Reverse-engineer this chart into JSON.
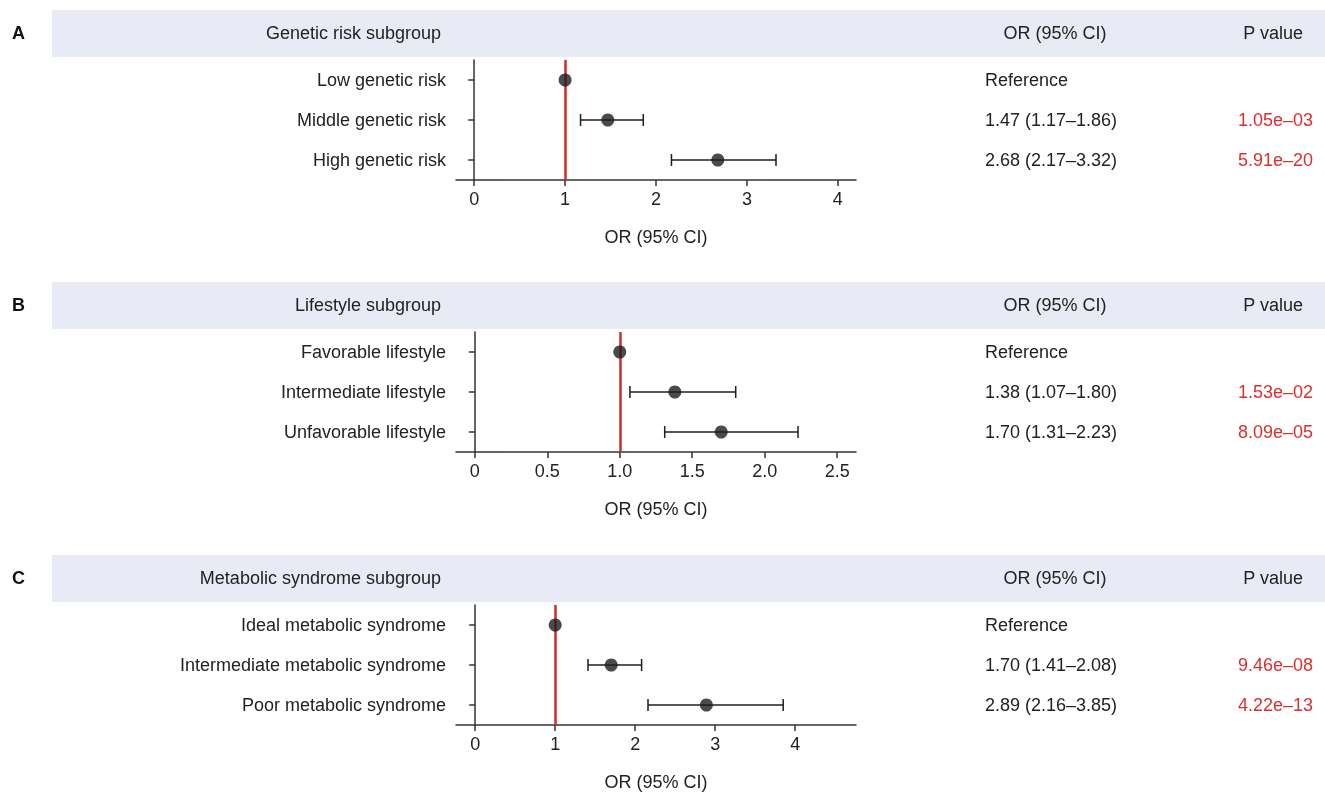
{
  "chart_data": [
    {
      "type": "scatter",
      "orientation": "horizontal",
      "title": "Genetic risk subgroup",
      "xlabel": "OR (95% CI)",
      "marker": "circle",
      "categories": [
        "Low genetic risk",
        "Middle genetic risk",
        "High genetic risk"
      ],
      "series": [
        {
          "color": "#1e1e1e",
          "values": [
            1,
            1.47,
            2.68
          ],
          "errors": [
            null,
            [
              1.17,
              1.86
            ],
            [
              2.17,
              3.32
            ]
          ]
        }
      ],
      "xlim": [
        -0.2,
        4.2
      ],
      "xticks": [
        0,
        1,
        2,
        3,
        4
      ],
      "ref_lines": [
        {
          "axis": "x",
          "value": 1,
          "color": "#d42a2a"
        }
      ],
      "annotations": [
        "OR (95% CI)",
        "P value",
        "Reference",
        "1.47 (1.17–1.86)",
        "2.68 (2.17–3.32)",
        "1.05e–03",
        "5.91e–20",
        "A"
      ]
    },
    {
      "type": "scatter",
      "orientation": "horizontal",
      "title": "Lifestyle subgroup",
      "xlabel": "OR (95% CI)",
      "marker": "circle",
      "categories": [
        "Favorable lifestyle",
        "Intermediate lifestyle",
        "Unfavorable lifestyle"
      ],
      "series": [
        {
          "color": "#1e1e1e",
          "values": [
            1,
            1.38,
            1.7
          ],
          "errors": [
            null,
            [
              1.07,
              1.8
            ],
            [
              1.31,
              2.23
            ]
          ]
        }
      ],
      "xlim": [
        -0.13,
        2.63
      ],
      "xticks": [
        0,
        0.5,
        {
          "value": 1,
          "label": "1.0"
        },
        1.5,
        {
          "value": 2,
          "label": "2.0"
        },
        2.5
      ],
      "ref_lines": [
        {
          "axis": "x",
          "value": 1,
          "color": "#d42a2a"
        }
      ],
      "annotations": [
        "OR (95% CI)",
        "P value",
        "Reference",
        "1.38 (1.07–1.80)",
        "1.70 (1.31–2.23)",
        "1.53e–02",
        "8.09e–05",
        "B"
      ]
    },
    {
      "type": "scatter",
      "orientation": "horizontal",
      "title": "Metabolic syndrome subgroup",
      "xlabel": "OR (95% CI)",
      "marker": "circle",
      "categories": [
        "Ideal metabolic syndrome",
        "Intermediate metabolic syndrome",
        "Poor metabolic syndrome"
      ],
      "series": [
        {
          "color": "#1e1e1e",
          "values": [
            1,
            1.7,
            2.89
          ],
          "errors": [
            null,
            [
              1.41,
              2.08
            ],
            [
              2.16,
              3.85
            ]
          ]
        }
      ],
      "xlim": [
        -0.24,
        4.76
      ],
      "xticks": [
        0,
        1,
        2,
        3,
        4
      ],
      "ref_lines": [
        {
          "axis": "x",
          "value": 1,
          "color": "#d42a2a"
        }
      ],
      "annotations": [
        "OR (95% CI)",
        "P value",
        "Reference",
        "1.70 (1.41–2.08)",
        "2.89 (2.16–3.85)",
        "9.46e–08",
        "4.22e–13",
        "C"
      ]
    }
  ]
}
